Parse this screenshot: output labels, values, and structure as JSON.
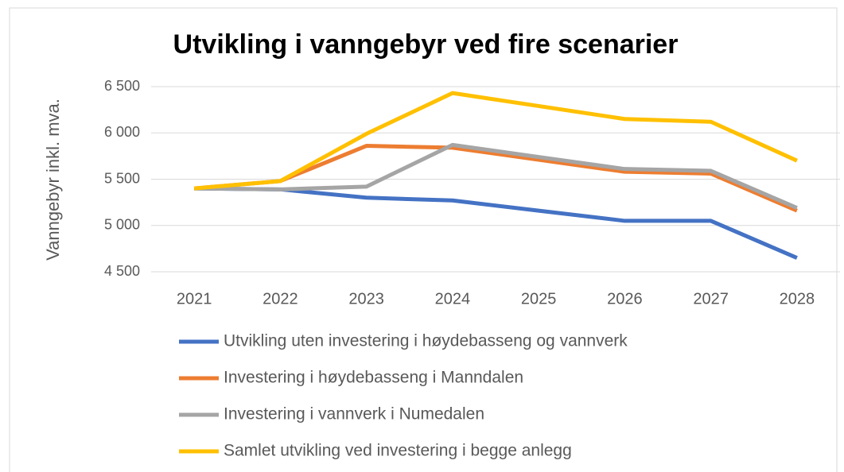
{
  "chart_data": {
    "type": "line",
    "title": "Utvikling i vanngebyr ved fire scenarier",
    "y_label": "Vanngebyr inkl. mva.",
    "categories": [
      "2021",
      "2022",
      "2023",
      "2024",
      "2025",
      "2026",
      "2027",
      "2028"
    ],
    "series": [
      {
        "name": "Utvikling uten investering i høydebasseng og vannverk",
        "color": "#4472c4",
        "values": [
          5400,
          5390,
          5300,
          5270,
          5160,
          5050,
          5050,
          4650
        ]
      },
      {
        "name": "Investering i høydebasseng i Manndalen",
        "color": "#ed7d31",
        "values": [
          5400,
          5480,
          5860,
          5840,
          5710,
          5580,
          5560,
          5160
        ]
      },
      {
        "name": "Investering i vannverk i Numedalen",
        "color": "#a5a5a5",
        "values": [
          5400,
          5390,
          5420,
          5870,
          5740,
          5610,
          5590,
          5190
        ]
      },
      {
        "name": "Samlet utvikling ved investering i begge anlegg",
        "color": "#ffc000",
        "values": [
          5400,
          5480,
          5990,
          6430,
          6290,
          6150,
          6120,
          5700
        ]
      }
    ],
    "ylim": [
      4500,
      6500
    ],
    "yticks": [
      {
        "value": 4500,
        "label": "4 500"
      },
      {
        "value": 5000,
        "label": "5 000"
      },
      {
        "value": 5500,
        "label": "5 500"
      },
      {
        "value": 6000,
        "label": "6 000"
      },
      {
        "value": 6500,
        "label": "6 500"
      }
    ],
    "grid": true,
    "legend": "bottom"
  }
}
